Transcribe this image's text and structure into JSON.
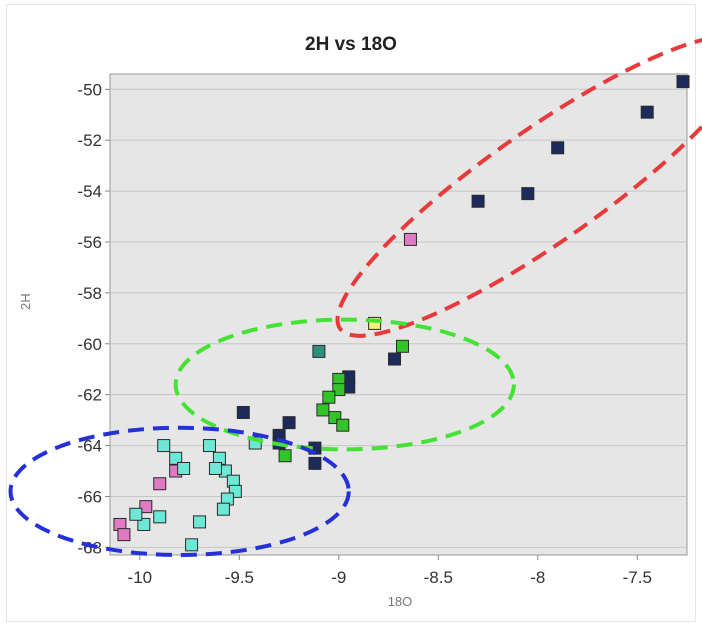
{
  "chart_data": {
    "type": "scatter",
    "title": "2H vs 18O",
    "xlabel": "18O",
    "ylabel": "2H",
    "xlim": [
      -10.15,
      -7.25
    ],
    "ylim": [
      -68.3,
      -49.4
    ],
    "xticks": [
      -10,
      -9.5,
      -9,
      -8.5,
      -8,
      -7.5
    ],
    "xtick_labels": [
      "-10",
      "-9.5",
      "-9",
      "-8.5",
      "-8",
      "-7.5"
    ],
    "yticks": [
      -50,
      -52,
      -54,
      -56,
      -58,
      -60,
      -62,
      -64,
      -66,
      -68
    ],
    "ytick_labels": [
      "-50",
      "-52",
      "-54",
      "-56",
      "-58",
      "-60",
      "-62",
      "-64",
      "-66",
      "-68"
    ],
    "grid": true,
    "colors": {
      "navy": "#1c2a5c",
      "green": "#33c42a",
      "teal": "#2e8f7a",
      "cyan": "#6ee8d6",
      "pink": "#e07ac6",
      "yellow": "#f3f07a",
      "plot_bg": "#e6e6e6",
      "grid": "#c6c6c6",
      "red_ellipse": "#e83a3a",
      "green_ellipse": "#44e234",
      "blue_ellipse": "#2430d8"
    },
    "series": [
      {
        "color": "navy",
        "points": [
          [
            -7.27,
            -49.7
          ],
          [
            -7.45,
            -50.9
          ],
          [
            -7.9,
            -52.3
          ],
          [
            -8.05,
            -54.1
          ],
          [
            -8.3,
            -54.4
          ],
          [
            -8.72,
            -60.6
          ],
          [
            -8.95,
            -61.3
          ],
          [
            -8.95,
            -61.7
          ],
          [
            -9.25,
            -63.1
          ],
          [
            -9.3,
            -63.6
          ],
          [
            -9.48,
            -62.7
          ],
          [
            -9.12,
            -64.1
          ],
          [
            -9.12,
            -64.7
          ],
          [
            -9.3,
            -63.9
          ]
        ]
      },
      {
        "color": "green",
        "points": [
          [
            -8.68,
            -60.1
          ],
          [
            -9.0,
            -61.4
          ],
          [
            -9.0,
            -61.8
          ],
          [
            -9.05,
            -62.1
          ],
          [
            -9.08,
            -62.6
          ],
          [
            -9.02,
            -62.9
          ],
          [
            -8.98,
            -63.2
          ],
          [
            -9.27,
            -64.4
          ]
        ]
      },
      {
        "color": "teal",
        "points": [
          [
            -9.1,
            -60.3
          ]
        ]
      },
      {
        "color": "yellow",
        "points": [
          [
            -8.82,
            -59.2
          ]
        ]
      },
      {
        "color": "pink",
        "points": [
          [
            -8.64,
            -55.9
          ],
          [
            -9.82,
            -65.0
          ],
          [
            -9.9,
            -65.5
          ],
          [
            -9.97,
            -66.4
          ],
          [
            -10.1,
            -67.1
          ],
          [
            -10.08,
            -67.5
          ]
        ]
      },
      {
        "color": "cyan",
        "points": [
          [
            -9.88,
            -64.0
          ],
          [
            -9.82,
            -64.5
          ],
          [
            -9.78,
            -64.9
          ],
          [
            -9.65,
            -64.0
          ],
          [
            -9.6,
            -64.5
          ],
          [
            -9.57,
            -65.0
          ],
          [
            -9.53,
            -65.4
          ],
          [
            -9.52,
            -65.8
          ],
          [
            -9.56,
            -66.1
          ],
          [
            -9.58,
            -66.5
          ],
          [
            -9.62,
            -64.9
          ],
          [
            -9.9,
            -66.8
          ],
          [
            -9.98,
            -67.1
          ],
          [
            -10.02,
            -66.7
          ],
          [
            -9.7,
            -67.0
          ],
          [
            -9.74,
            -67.9
          ],
          [
            -9.42,
            -63.9
          ]
        ]
      }
    ],
    "annotations": [
      {
        "shape": "ellipse",
        "color": "red_ellipse",
        "style": "dashed",
        "center": [
          -7.97,
          -53.8
        ],
        "rx": 1.25,
        "ry": 2.2,
        "rotation_deg": -35
      },
      {
        "shape": "ellipse",
        "color": "green_ellipse",
        "style": "dashed",
        "center": [
          -8.97,
          -61.6
        ],
        "rx": 0.85,
        "ry": 2.55,
        "rotation_deg": 0
      },
      {
        "shape": "ellipse",
        "color": "blue_ellipse",
        "style": "dashed",
        "center": [
          -9.8,
          -65.8
        ],
        "rx": 0.85,
        "ry": 2.5,
        "rotation_deg": 0
      }
    ]
  }
}
